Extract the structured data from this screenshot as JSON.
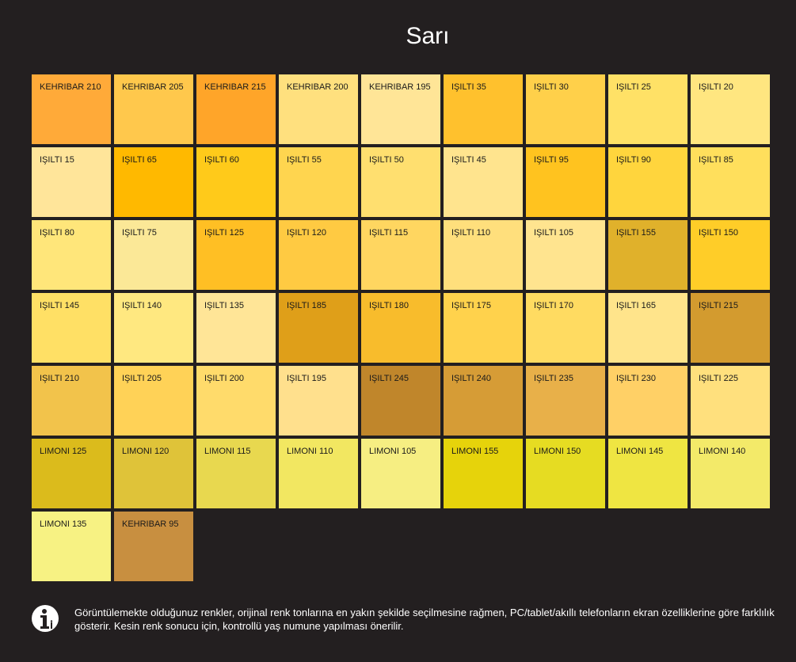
{
  "page": {
    "title": "Sarı"
  },
  "swatches": [
    {
      "label": "KEHRIBAR 210",
      "color": "#ffaa39"
    },
    {
      "label": "KEHRIBAR 205",
      "color": "#ffc84c"
    },
    {
      "label": "KEHRIBAR 215",
      "color": "#ffa529"
    },
    {
      "label": "KEHRIBAR 200",
      "color": "#ffe07e"
    },
    {
      "label": "KEHRIBAR 195",
      "color": "#ffe597"
    },
    {
      "label": "IŞILTI 35",
      "color": "#ffc12d"
    },
    {
      "label": "IŞILTI 30",
      "color": "#ffd04a"
    },
    {
      "label": "IŞILTI 25",
      "color": "#ffe166"
    },
    {
      "label": "IŞILTI 20",
      "color": "#ffe680"
    },
    {
      "label": "IŞILTI 15",
      "color": "#ffe59a"
    },
    {
      "label": "IŞILTI 65",
      "color": "#ffb900"
    },
    {
      "label": "IŞILTI 60",
      "color": "#ffca1a"
    },
    {
      "label": "IŞILTI 55",
      "color": "#ffd54f"
    },
    {
      "label": "IŞILTI 50",
      "color": "#ffdf6f"
    },
    {
      "label": "IŞILTI 45",
      "color": "#ffe48e"
    },
    {
      "label": "IŞILTI 95",
      "color": "#ffc31f"
    },
    {
      "label": "IŞILTI 90",
      "color": "#ffd53d"
    },
    {
      "label": "IŞILTI 85",
      "color": "#ffdf5c"
    },
    {
      "label": "IŞILTI 80",
      "color": "#ffe67a"
    },
    {
      "label": "IŞILTI 75",
      "color": "#fbe897"
    },
    {
      "label": "IŞILTI 125",
      "color": "#ffbf24"
    },
    {
      "label": "IŞILTI 120",
      "color": "#ffca42"
    },
    {
      "label": "IŞILTI 115",
      "color": "#ffd660"
    },
    {
      "label": "IŞILTI 110",
      "color": "#ffdf7c"
    },
    {
      "label": "IŞILTI 105",
      "color": "#ffe48f"
    },
    {
      "label": "IŞILTI 155",
      "color": "#e0b12b"
    },
    {
      "label": "IŞILTI 150",
      "color": "#ffcd28"
    },
    {
      "label": "IŞILTI 145",
      "color": "#ffe065"
    },
    {
      "label": "IŞILTI 140",
      "color": "#ffe880"
    },
    {
      "label": "IŞILTI 135",
      "color": "#ffe597"
    },
    {
      "label": "IŞILTI 185",
      "color": "#df9f19"
    },
    {
      "label": "IŞILTI 180",
      "color": "#f8bc2c"
    },
    {
      "label": "IŞILTI 175",
      "color": "#ffd24c"
    },
    {
      "label": "IŞILTI 170",
      "color": "#ffdb61"
    },
    {
      "label": "IŞILTI 165",
      "color": "#ffe48b"
    },
    {
      "label": "IŞILTI 215",
      "color": "#d39b2f"
    },
    {
      "label": "IŞILTI 210",
      "color": "#f2c34b"
    },
    {
      "label": "IŞILTI 205",
      "color": "#ffd257"
    },
    {
      "label": "IŞILTI 200",
      "color": "#ffdb6b"
    },
    {
      "label": "IŞILTI 195",
      "color": "#ffe08d"
    },
    {
      "label": "IŞILTI 245",
      "color": "#c0862b"
    },
    {
      "label": "IŞILTI 240",
      "color": "#d69c36"
    },
    {
      "label": "IŞILTI 235",
      "color": "#e8b049"
    },
    {
      "label": "IŞILTI 230",
      "color": "#ffd066"
    },
    {
      "label": "IŞILTI 225",
      "color": "#ffe07d"
    },
    {
      "label": "LIMONI 125",
      "color": "#dbbb1c"
    },
    {
      "label": "LIMONI 120",
      "color": "#dfc339"
    },
    {
      "label": "LIMONI 115",
      "color": "#e8d84f"
    },
    {
      "label": "LIMONI 110",
      "color": "#f2e761"
    },
    {
      "label": "LIMONI 105",
      "color": "#f6ee82"
    },
    {
      "label": "LIMONI 155",
      "color": "#e6d30b"
    },
    {
      "label": "LIMONI 150",
      "color": "#e6dc22"
    },
    {
      "label": "LIMONI 145",
      "color": "#efe542"
    },
    {
      "label": "LIMONI 140",
      "color": "#f3ea69"
    },
    {
      "label": "LIMONI 135",
      "color": "#f7f283"
    },
    {
      "label": "KEHRIBAR 95",
      "color": "#c88f40"
    }
  ],
  "notice": {
    "icon": "info-icon",
    "text": "Görüntülemekte olduğunuz renkler, orijinal renk tonlarına en yakın şekilde seçilmesine rağmen, PC/tablet/akıllı telefonların ekran özelliklerine göre farklılık gösterir. Kesin renk sonucu için, kontrollü yaş numune yapılması önerilir."
  }
}
